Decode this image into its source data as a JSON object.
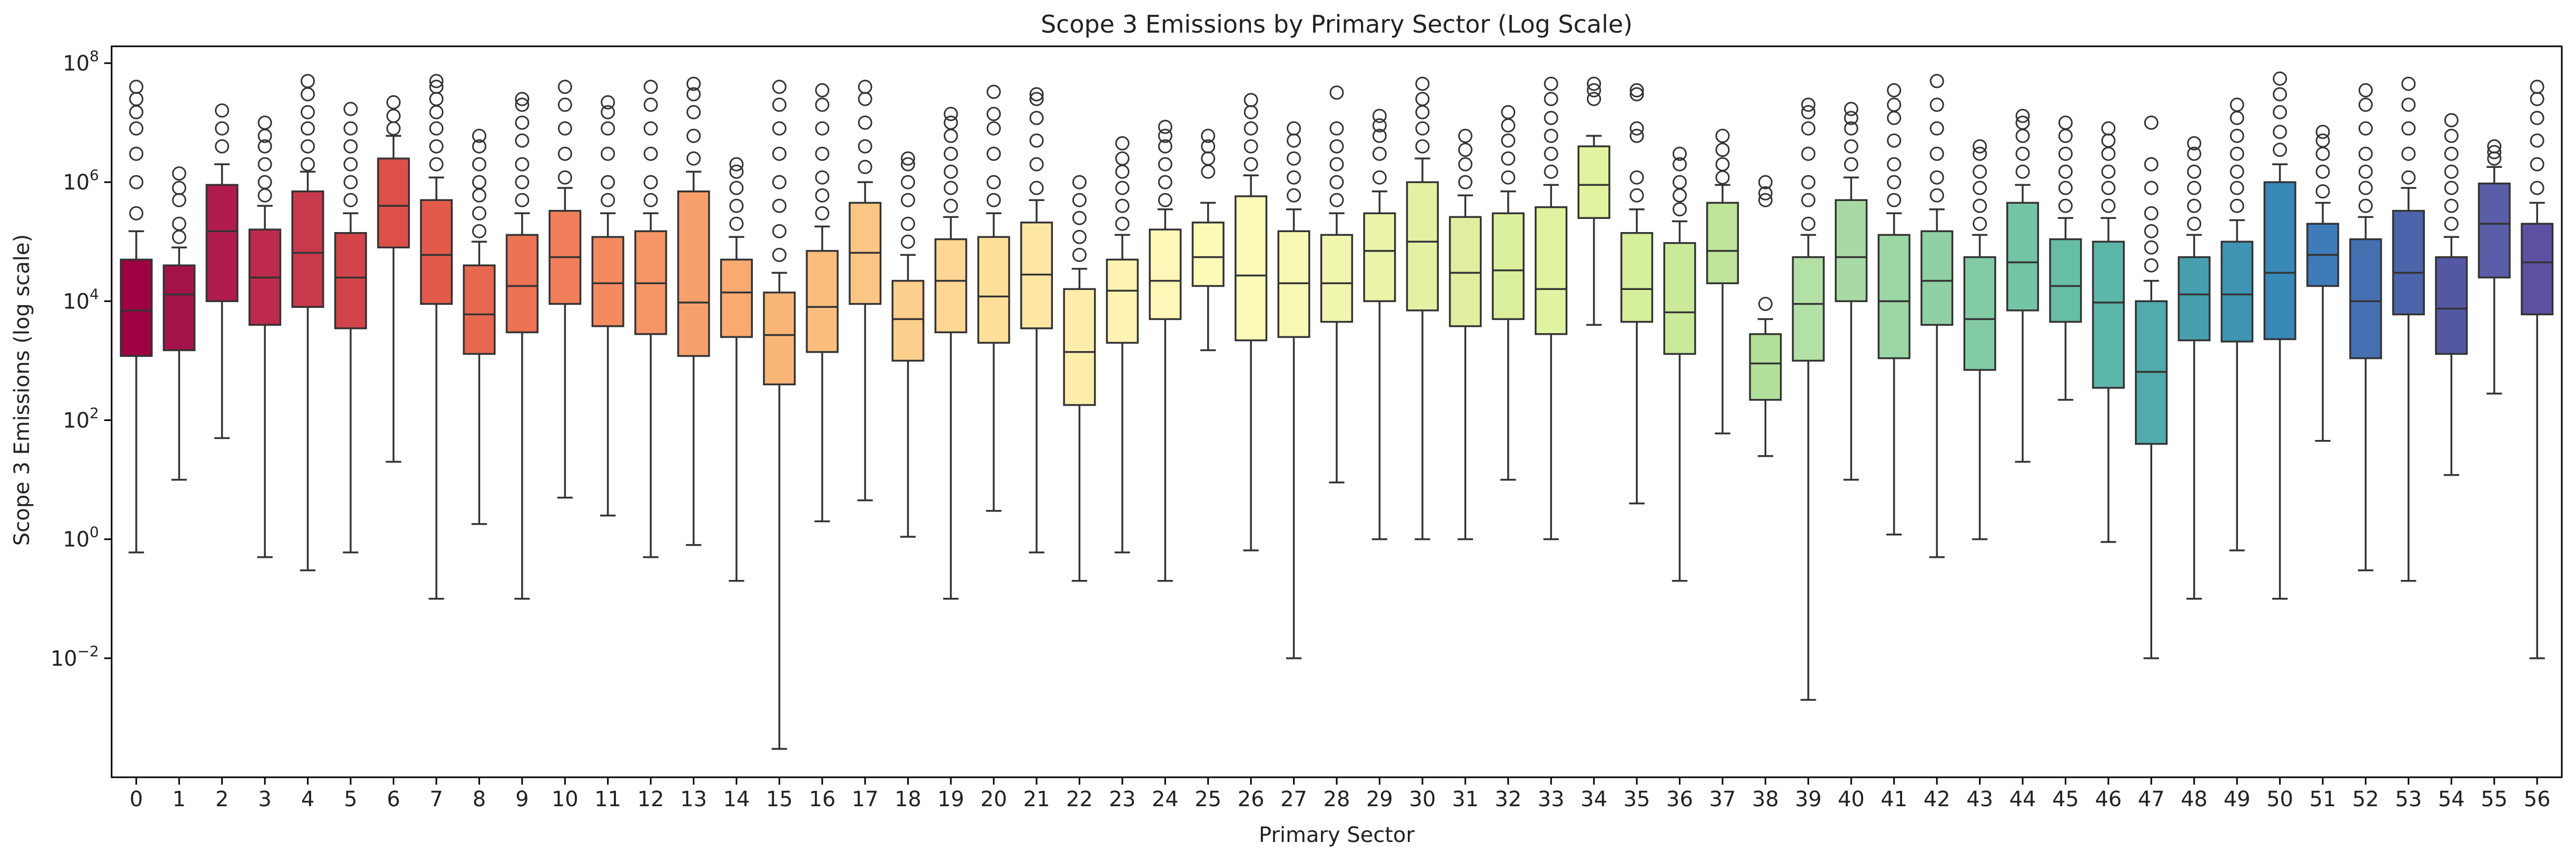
{
  "chart_data": {
    "type": "box",
    "title": "Scope 3 Emissions by Primary Sector (Log Scale)",
    "xlabel": "Primary Sector",
    "ylabel": "Scope 3 Emissions (log scale)",
    "y_scale": "log",
    "ylim": [
      0.0001,
      100000000.0
    ],
    "y_ticks": [
      {
        "value": 0.01,
        "base": "10",
        "exp": "−2"
      },
      {
        "value": 1,
        "base": "10",
        "exp": "0"
      },
      {
        "value": 100,
        "base": "10",
        "exp": "2"
      },
      {
        "value": 10000,
        "base": "10",
        "exp": "4"
      },
      {
        "value": 1000000,
        "base": "10",
        "exp": "6"
      },
      {
        "value": 100000000,
        "base": "10",
        "exp": "8"
      }
    ],
    "grid": false,
    "colormap": "Spectral",
    "categories": [
      "0",
      "1",
      "2",
      "3",
      "4",
      "5",
      "6",
      "7",
      "8",
      "9",
      "10",
      "11",
      "12",
      "13",
      "14",
      "15",
      "16",
      "17",
      "18",
      "19",
      "20",
      "21",
      "22",
      "23",
      "24",
      "25",
      "26",
      "27",
      "28",
      "29",
      "30",
      "31",
      "32",
      "33",
      "34",
      "35",
      "36",
      "37",
      "38",
      "39",
      "40",
      "41",
      "42",
      "43",
      "44",
      "45",
      "46",
      "47",
      "48",
      "49",
      "50",
      "51",
      "52",
      "53",
      "54",
      "55",
      "56"
    ],
    "boxes": [
      {
        "category": "0",
        "whislo": 0.6,
        "q1": 1200,
        "med": 7000,
        "q3": 50000,
        "whishi": 150000,
        "fliers": [
          300000,
          1000000,
          3000000,
          8000000,
          15000000,
          25000000,
          40000000
        ],
        "color": "#9e0142"
      },
      {
        "category": "1",
        "whislo": 10,
        "q1": 1500,
        "med": 13000,
        "q3": 40000,
        "whishi": 80000,
        "fliers": [
          120000,
          200000,
          500000,
          800000,
          1400000
        ],
        "color": "#a4124a"
      },
      {
        "category": "2",
        "whislo": 50,
        "q1": 10000,
        "med": 150000,
        "q3": 900000,
        "whishi": 2000000,
        "fliers": [
          4000000,
          8000000,
          16000000
        ],
        "color": "#b01c4c"
      },
      {
        "category": "3",
        "whislo": 0.5,
        "q1": 4000,
        "med": 25000,
        "q3": 160000,
        "whishi": 400000,
        "fliers": [
          600000,
          1000000,
          2000000,
          4000000,
          6000000,
          10000000
        ],
        "color": "#bd2a4d"
      },
      {
        "category": "4",
        "whislo": 0.3,
        "q1": 8000,
        "med": 65000,
        "q3": 700000,
        "whishi": 1500000,
        "fliers": [
          2000000,
          4000000,
          8000000,
          15000000,
          30000000,
          50000000
        ],
        "color": "#c9394c"
      },
      {
        "category": "5",
        "whislo": 0.6,
        "q1": 3500,
        "med": 25000,
        "q3": 140000,
        "whishi": 300000,
        "fliers": [
          500000,
          1000000,
          2000000,
          4000000,
          8000000,
          17000000
        ],
        "color": "#d3444a"
      },
      {
        "category": "6",
        "whislo": 20,
        "q1": 80000,
        "med": 400000,
        "q3": 2500000,
        "whishi": 6000000,
        "fliers": [
          8000000,
          13000000,
          22000000
        ],
        "color": "#dc5049"
      },
      {
        "category": "7",
        "whislo": 0.1,
        "q1": 9000,
        "med": 60000,
        "q3": 500000,
        "whishi": 1200000,
        "fliers": [
          2000000,
          4000000,
          8000000,
          15000000,
          25000000,
          40000000,
          50000000
        ],
        "color": "#e25b4a"
      },
      {
        "category": "8",
        "whislo": 1.8,
        "q1": 1300,
        "med": 6000,
        "q3": 40000,
        "whishi": 100000,
        "fliers": [
          150000,
          300000,
          600000,
          1000000,
          2000000,
          4000000,
          6000000
        ],
        "color": "#e7674f"
      },
      {
        "category": "9",
        "whislo": 0.1,
        "q1": 3000,
        "med": 18000,
        "q3": 130000,
        "whishi": 300000,
        "fliers": [
          500000,
          1000000,
          2000000,
          5000000,
          10000000,
          20000000,
          25000000
        ],
        "color": "#ec7355"
      },
      {
        "category": "10",
        "whislo": 5,
        "q1": 9000,
        "med": 55000,
        "q3": 330000,
        "whishi": 800000,
        "fliers": [
          1200000,
          3000000,
          8000000,
          20000000,
          40000000
        ],
        "color": "#f07e5a"
      },
      {
        "category": "11",
        "whislo": 2.5,
        "q1": 3800,
        "med": 20000,
        "q3": 120000,
        "whishi": 300000,
        "fliers": [
          500000,
          1000000,
          3000000,
          8000000,
          15000000,
          22000000
        ],
        "color": "#f38a60"
      },
      {
        "category": "12",
        "whislo": 0.5,
        "q1": 2800,
        "med": 20000,
        "q3": 150000,
        "whishi": 300000,
        "fliers": [
          500000,
          1000000,
          3000000,
          8000000,
          20000000,
          40000000
        ],
        "color": "#f59565"
      },
      {
        "category": "13",
        "whislo": 0.8,
        "q1": 1200,
        "med": 9500,
        "q3": 700000,
        "whishi": 1500000,
        "fliers": [
          2500000,
          6000000,
          15000000,
          30000000,
          45000000
        ],
        "color": "#f7a06b"
      },
      {
        "category": "14",
        "whislo": 0.2,
        "q1": 2500,
        "med": 14000,
        "q3": 50000,
        "whishi": 120000,
        "fliers": [
          200000,
          400000,
          800000,
          1500000,
          2000000
        ],
        "color": "#f8aa71"
      },
      {
        "category": "15",
        "whislo": 0.0003,
        "q1": 400,
        "med": 2700,
        "q3": 14000,
        "whishi": 30000,
        "fliers": [
          60000,
          150000,
          400000,
          1000000,
          3000000,
          8000000,
          20000000,
          40000000
        ],
        "color": "#f9b477"
      },
      {
        "category": "16",
        "whislo": 2,
        "q1": 1400,
        "med": 8000,
        "q3": 70000,
        "whishi": 180000,
        "fliers": [
          300000,
          600000,
          1200000,
          3000000,
          8000000,
          20000000,
          35000000
        ],
        "color": "#fabd7d"
      },
      {
        "category": "17",
        "whislo": 4.5,
        "q1": 9000,
        "med": 65000,
        "q3": 450000,
        "whishi": 1000000,
        "fliers": [
          1800000,
          4000000,
          10000000,
          25000000,
          40000000
        ],
        "color": "#fbc684"
      },
      {
        "category": "18",
        "whislo": 1.1,
        "q1": 1000,
        "med": 5000,
        "q3": 22000,
        "whishi": 60000,
        "fliers": [
          100000,
          200000,
          500000,
          1000000,
          2000000,
          2500000
        ],
        "color": "#fccf8c"
      },
      {
        "category": "19",
        "whislo": 0.1,
        "q1": 3000,
        "med": 22000,
        "q3": 110000,
        "whishi": 260000,
        "fliers": [
          400000,
          800000,
          1500000,
          3000000,
          6000000,
          10000000,
          14000000
        ],
        "color": "#fdd793"
      },
      {
        "category": "20",
        "whislo": 3,
        "q1": 2000,
        "med": 12000,
        "q3": 120000,
        "whishi": 300000,
        "fliers": [
          500000,
          1000000,
          3000000,
          8000000,
          14000000,
          33000000
        ],
        "color": "#fddf9a"
      },
      {
        "category": "21",
        "whislo": 0.6,
        "q1": 3500,
        "med": 28000,
        "q3": 210000,
        "whishi": 500000,
        "fliers": [
          800000,
          2000000,
          5000000,
          12000000,
          25000000,
          30000000
        ],
        "color": "#fde6a2"
      },
      {
        "category": "22",
        "whislo": 0.2,
        "q1": 180,
        "med": 1400,
        "q3": 16000,
        "whishi": 35000,
        "fliers": [
          60000,
          120000,
          250000,
          500000,
          1000000
        ],
        "color": "#feedaa"
      },
      {
        "category": "23",
        "whislo": 0.6,
        "q1": 2000,
        "med": 15000,
        "q3": 50000,
        "whishi": 130000,
        "fliers": [
          200000,
          400000,
          800000,
          1500000,
          2500000,
          4500000
        ],
        "color": "#fef3b2"
      },
      {
        "category": "24",
        "whislo": 0.2,
        "q1": 5000,
        "med": 22000,
        "q3": 160000,
        "whishi": 350000,
        "fliers": [
          500000,
          1000000,
          2000000,
          4000000,
          6000000,
          8500000
        ],
        "color": "#fef7b8"
      },
      {
        "category": "25",
        "whislo": 1500,
        "q1": 18000,
        "med": 55000,
        "q3": 210000,
        "whishi": 450000,
        "fliers": [
          1500000,
          2500000,
          4000000,
          6000000
        ],
        "color": "#fdfab9"
      },
      {
        "category": "26",
        "whislo": 0.65,
        "q1": 2200,
        "med": 27000,
        "q3": 580000,
        "whishi": 1300000,
        "fliers": [
          2000000,
          4000000,
          8000000,
          15000000,
          24000000
        ],
        "color": "#fbfab8"
      },
      {
        "category": "27",
        "whislo": 0.01,
        "q1": 2500,
        "med": 20000,
        "q3": 150000,
        "whishi": 350000,
        "fliers": [
          600000,
          1200000,
          2500000,
          5000000,
          8000000
        ],
        "color": "#f6f8b3"
      },
      {
        "category": "28",
        "whislo": 9,
        "q1": 4500,
        "med": 20000,
        "q3": 130000,
        "whishi": 300000,
        "fliers": [
          500000,
          1000000,
          2000000,
          4000000,
          8000000,
          32000000
        ],
        "color": "#f1f6ae"
      },
      {
        "category": "29",
        "whislo": 1,
        "q1": 10000,
        "med": 70000,
        "q3": 300000,
        "whishi": 700000,
        "fliers": [
          1200000,
          3000000,
          6000000,
          9000000,
          13000000
        ],
        "color": "#ebf3a8"
      },
      {
        "category": "30",
        "whislo": 1,
        "q1": 7000,
        "med": 100000,
        "q3": 1000000,
        "whishi": 2500000,
        "fliers": [
          4000000,
          8000000,
          15000000,
          25000000,
          45000000
        ],
        "color": "#e5f0a3"
      },
      {
        "category": "31",
        "whislo": 1,
        "q1": 3800,
        "med": 30000,
        "q3": 260000,
        "whishi": 600000,
        "fliers": [
          1000000,
          2000000,
          3500000,
          6000000
        ],
        "color": "#dfee9f"
      },
      {
        "category": "32",
        "whislo": 10,
        "q1": 5000,
        "med": 33000,
        "q3": 300000,
        "whishi": 700000,
        "fliers": [
          1200000,
          2500000,
          5000000,
          9000000,
          15000000
        ],
        "color": "#d9ef9b"
      },
      {
        "category": "33",
        "whislo": 1,
        "q1": 2800,
        "med": 16000,
        "q3": 380000,
        "whishi": 900000,
        "fliers": [
          1500000,
          3000000,
          6000000,
          12000000,
          25000000,
          45000000
        ],
        "color": "#e0f3a1"
      },
      {
        "category": "34",
        "whislo": 4000,
        "q1": 250000,
        "med": 900000,
        "q3": 4000000,
        "whishi": 6000000,
        "fliers": [
          25000000,
          35000000,
          45000000
        ],
        "color": "#e2f3a0"
      },
      {
        "category": "35",
        "whislo": 4,
        "q1": 4500,
        "med": 16000,
        "q3": 140000,
        "whishi": 350000,
        "fliers": [
          600000,
          1200000,
          6000000,
          8000000,
          30000000,
          35000000
        ],
        "color": "#d6ef9b"
      },
      {
        "category": "36",
        "whislo": 0.2,
        "q1": 1300,
        "med": 6500,
        "q3": 95000,
        "whishi": 220000,
        "fliers": [
          350000,
          600000,
          1000000,
          2000000,
          3000000
        ],
        "color": "#caea9a"
      },
      {
        "category": "37",
        "whislo": 60,
        "q1": 20000,
        "med": 70000,
        "q3": 450000,
        "whishi": 900000,
        "fliers": [
          1200000,
          2000000,
          3500000,
          6000000
        ],
        "color": "#bee599"
      },
      {
        "category": "38",
        "whislo": 25,
        "q1": 220,
        "med": 900,
        "q3": 2800,
        "whishi": 5000,
        "fliers": [
          9000,
          500000,
          650000,
          1000000
        ],
        "color": "#b2e09b"
      },
      {
        "category": "39",
        "whislo": 0.002,
        "q1": 1000,
        "med": 9000,
        "q3": 55000,
        "whishi": 130000,
        "fliers": [
          200000,
          500000,
          1000000,
          3000000,
          8000000,
          15000000,
          20000000
        ],
        "color": "#b3e0a5"
      },
      {
        "category": "40",
        "whislo": 10,
        "q1": 10000,
        "med": 55000,
        "q3": 500000,
        "whishi": 1200000,
        "fliers": [
          2000000,
          4000000,
          8000000,
          12000000,
          17000000
        ],
        "color": "#a8dba4"
      },
      {
        "category": "41",
        "whislo": 1.2,
        "q1": 1100,
        "med": 10000,
        "q3": 130000,
        "whishi": 300000,
        "fliers": [
          500000,
          1000000,
          2000000,
          5000000,
          12000000,
          20000000,
          35000000
        ],
        "color": "#9cd6a4"
      },
      {
        "category": "42",
        "whislo": 0.5,
        "q1": 4000,
        "med": 22000,
        "q3": 150000,
        "whishi": 350000,
        "fliers": [
          600000,
          1200000,
          3000000,
          8000000,
          20000000,
          50000000
        ],
        "color": "#90d1a4"
      },
      {
        "category": "43",
        "whislo": 1,
        "q1": 700,
        "med": 5000,
        "q3": 55000,
        "whishi": 130000,
        "fliers": [
          200000,
          400000,
          800000,
          1500000,
          3000000,
          4000000
        ],
        "color": "#82cba5"
      },
      {
        "category": "44",
        "whislo": 20,
        "q1": 7000,
        "med": 45000,
        "q3": 450000,
        "whishi": 900000,
        "fliers": [
          1500000,
          3000000,
          6000000,
          10000000,
          13000000
        ],
        "color": "#74c5a5"
      },
      {
        "category": "45",
        "whislo": 220,
        "q1": 4500,
        "med": 18000,
        "q3": 110000,
        "whishi": 250000,
        "fliers": [
          400000,
          800000,
          1500000,
          3000000,
          6000000,
          10000000
        ],
        "color": "#66bea6"
      },
      {
        "category": "46",
        "whislo": 0.9,
        "q1": 350,
        "med": 9500,
        "q3": 100000,
        "whishi": 250000,
        "fliers": [
          400000,
          800000,
          1500000,
          3000000,
          5000000,
          8000000
        ],
        "color": "#5bb6a8"
      },
      {
        "category": "47",
        "whislo": 0.01,
        "q1": 40,
        "med": 650,
        "q3": 10000,
        "whishi": 22000,
        "fliers": [
          40000,
          80000,
          150000,
          300000,
          800000,
          2000000,
          10000000
        ],
        "color": "#51aaab"
      },
      {
        "category": "48",
        "whislo": 0.1,
        "q1": 2200,
        "med": 13000,
        "q3": 55000,
        "whishi": 130000,
        "fliers": [
          200000,
          400000,
          800000,
          1500000,
          3000000,
          4500000
        ],
        "color": "#479fae"
      },
      {
        "category": "49",
        "whislo": 0.65,
        "q1": 2100,
        "med": 13000,
        "q3": 100000,
        "whishi": 230000,
        "fliers": [
          400000,
          800000,
          1500000,
          3000000,
          6000000,
          12000000,
          20000000
        ],
        "color": "#3e94b2"
      },
      {
        "category": "50",
        "whislo": 0.1,
        "q1": 2300,
        "med": 30000,
        "q3": 1000000,
        "whishi": 2000000,
        "fliers": [
          3500000,
          7000000,
          15000000,
          30000000,
          55000000
        ],
        "color": "#3888b8"
      },
      {
        "category": "51",
        "whislo": 45,
        "q1": 18000,
        "med": 60000,
        "q3": 200000,
        "whishi": 450000,
        "fliers": [
          700000,
          1500000,
          3000000,
          5000000,
          7000000
        ],
        "color": "#3d7cb9"
      },
      {
        "category": "52",
        "whislo": 0.3,
        "q1": 1100,
        "med": 10000,
        "q3": 110000,
        "whishi": 260000,
        "fliers": [
          400000,
          800000,
          1500000,
          3000000,
          8000000,
          20000000,
          35000000
        ],
        "color": "#4470b2"
      },
      {
        "category": "53",
        "whislo": 0.2,
        "q1": 6000,
        "med": 30000,
        "q3": 330000,
        "whishi": 800000,
        "fliers": [
          1200000,
          3000000,
          8000000,
          20000000,
          45000000
        ],
        "color": "#4b64ab"
      },
      {
        "category": "54",
        "whislo": 12,
        "q1": 1300,
        "med": 7500,
        "q3": 55000,
        "whishi": 120000,
        "fliers": [
          200000,
          400000,
          800000,
          1500000,
          3000000,
          6000000,
          11000000
        ],
        "color": "#5458a4"
      },
      {
        "category": "55",
        "whislo": 280,
        "q1": 25000,
        "med": 200000,
        "q3": 950000,
        "whishi": 1800000,
        "fliers": [
          2500000,
          3200000,
          4000000
        ],
        "color": "#5a5ea9"
      },
      {
        "category": "56",
        "whislo": 0.01,
        "q1": 6000,
        "med": 45000,
        "q3": 200000,
        "whishi": 450000,
        "fliers": [
          800000,
          2000000,
          5000000,
          12000000,
          25000000,
          40000000
        ],
        "color": "#5e4fa2"
      }
    ]
  }
}
